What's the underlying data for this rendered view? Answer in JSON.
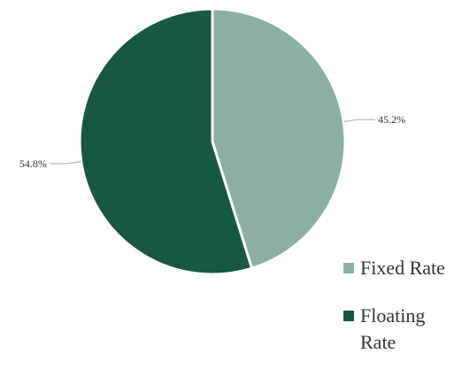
{
  "chart_data": {
    "type": "pie",
    "slices": [
      {
        "label": "Fixed Rate",
        "value": 45.2,
        "display": "45.2%",
        "color": "#8bb0a2"
      },
      {
        "label": "Floating Rate",
        "value": 54.8,
        "display": "54.8%",
        "color": "#175843"
      }
    ],
    "start_angle": "12 o'clock",
    "direction": "clockwise",
    "legend_position": "bottom-right"
  }
}
